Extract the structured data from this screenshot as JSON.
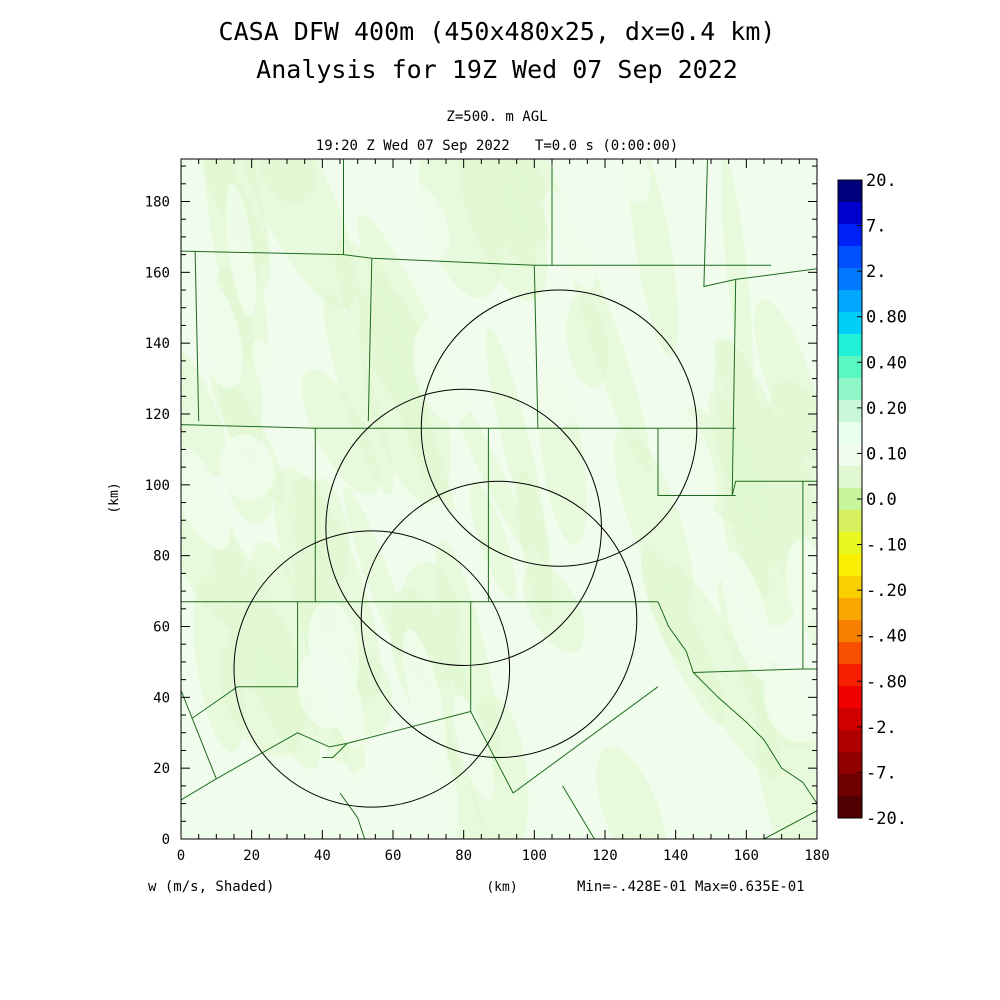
{
  "header": {
    "title_line1": "CASA DFW 400m (450x480x25, dx=0.4 km)",
    "title_line2": "Analysis for 19Z Wed 07 Sep 2022",
    "level": "Z=500. m AGL",
    "valid": "19:20 Z Wed 07 Sep 2022   T=0.0 s (0:00:00)"
  },
  "footer": {
    "field": "w (m/s, Shaded)",
    "x_unit": "(km)",
    "minmax": "Min=-.428E-01 Max=0.635E-01"
  },
  "chart_data": {
    "type": "heatmap",
    "field": "w (m/s, Shaded)",
    "level": "Z=500. m AGL",
    "xlabel": "(km)",
    "ylabel": "(km)",
    "xlim": [
      0,
      180
    ],
    "ylim": [
      0,
      192
    ],
    "x_ticks": [
      "0",
      "20",
      "40",
      "60",
      "80",
      "100",
      "120",
      "140",
      "160",
      "180"
    ],
    "y_ticks": [
      "0",
      "20",
      "40",
      "60",
      "80",
      "100",
      "120",
      "140",
      "160",
      "180"
    ],
    "x_tick_values": [
      0,
      20,
      40,
      60,
      80,
      100,
      120,
      140,
      160,
      180
    ],
    "y_tick_values": [
      0,
      20,
      40,
      60,
      80,
      100,
      120,
      140,
      160,
      180
    ],
    "min": -0.0428,
    "max": 0.0635,
    "colorbar": {
      "labels": [
        "20.",
        "7.",
        "2.",
        "0.80",
        "0.40",
        "0.20",
        "0.10",
        "0.0",
        "-.10",
        "-.20",
        "-.40",
        "-.80",
        "-2.",
        "-7.",
        "-20."
      ],
      "colors": [
        "#00007d",
        "#0000cd",
        "#0020f8",
        "#0050ff",
        "#0078ff",
        "#00a8ff",
        "#00d0f8",
        "#20f0d8",
        "#58f8c0",
        "#90f8c8",
        "#c8f8d8",
        "#e8fff0",
        "#f0fcec",
        "#e0f8d0",
        "#c8f49a",
        "#d8f060",
        "#e8f820",
        "#f8f000",
        "#f8d000",
        "#f8a800",
        "#f88000",
        "#f85000",
        "#f82000",
        "#f00000",
        "#d00000",
        "#b00000",
        "#900000",
        "#700000",
        "#500000"
      ]
    },
    "radar_coverage_km": [
      {
        "cx": 107,
        "cy": 116,
        "r": 39
      },
      {
        "cx": 80,
        "cy": 88,
        "r": 39
      },
      {
        "cx": 90,
        "cy": 62,
        "r": 39
      },
      {
        "cx": 54,
        "cy": 48,
        "r": 39
      }
    ],
    "county_lines_km": [
      [
        [
          46,
          192
        ],
        [
          46,
          165
        ]
      ],
      [
        [
          0,
          166
        ],
        [
          46,
          165
        ],
        [
          54,
          164
        ],
        [
          100,
          162
        ],
        [
          167,
          162
        ]
      ],
      [
        [
          105,
          192
        ],
        [
          105,
          162
        ]
      ],
      [
        [
          149,
          192
        ],
        [
          148,
          156
        ],
        [
          157,
          158
        ],
        [
          180,
          161
        ]
      ],
      [
        [
          54,
          164
        ],
        [
          53,
          118
        ]
      ],
      [
        [
          4,
          166
        ],
        [
          5,
          118
        ]
      ],
      [
        [
          0,
          117
        ],
        [
          38,
          116
        ],
        [
          87,
          116
        ],
        [
          135,
          116
        ],
        [
          157,
          116
        ]
      ],
      [
        [
          157,
          158
        ],
        [
          156,
          97
        ],
        [
          157,
          101
        ],
        [
          180,
          101
        ]
      ],
      [
        [
          176,
          101
        ],
        [
          176,
          48
        ]
      ],
      [
        [
          38,
          116
        ],
        [
          38,
          67
        ]
      ],
      [
        [
          87,
          116
        ],
        [
          87,
          67
        ]
      ],
      [
        [
          135,
          116
        ],
        [
          135,
          97
        ],
        [
          157,
          97
        ]
      ],
      [
        [
          100,
          162
        ],
        [
          101,
          116
        ]
      ],
      [
        [
          0,
          67
        ],
        [
          33,
          67
        ],
        [
          38,
          67
        ],
        [
          87,
          67
        ],
        [
          135,
          67
        ]
      ],
      [
        [
          33,
          67
        ],
        [
          33,
          43
        ],
        [
          16,
          43
        ],
        [
          3,
          34
        ]
      ],
      [
        [
          0,
          42
        ],
        [
          10,
          17
        ]
      ],
      [
        [
          82,
          67
        ],
        [
          82,
          36
        ],
        [
          47,
          27
        ],
        [
          42,
          26
        ],
        [
          33,
          30
        ],
        [
          10,
          17
        ],
        [
          0,
          11
        ]
      ],
      [
        [
          47,
          27
        ],
        [
          43,
          23
        ],
        [
          40,
          23
        ]
      ],
      [
        [
          82,
          36
        ],
        [
          94,
          13
        ],
        [
          135,
          43
        ]
      ],
      [
        [
          135,
          67
        ],
        [
          138,
          60
        ],
        [
          143,
          53
        ],
        [
          145,
          47
        ],
        [
          176,
          48
        ],
        [
          180,
          48
        ]
      ],
      [
        [
          145,
          47
        ],
        [
          152,
          40
        ],
        [
          160,
          33
        ],
        [
          165,
          28
        ],
        [
          170,
          20
        ],
        [
          176,
          16
        ],
        [
          180,
          10
        ]
      ],
      [
        [
          108,
          15
        ],
        [
          117,
          0
        ]
      ],
      [
        [
          45,
          13
        ],
        [
          50,
          6
        ],
        [
          52,
          0
        ]
      ],
      [
        [
          180,
          8
        ],
        [
          165,
          0
        ]
      ]
    ]
  }
}
